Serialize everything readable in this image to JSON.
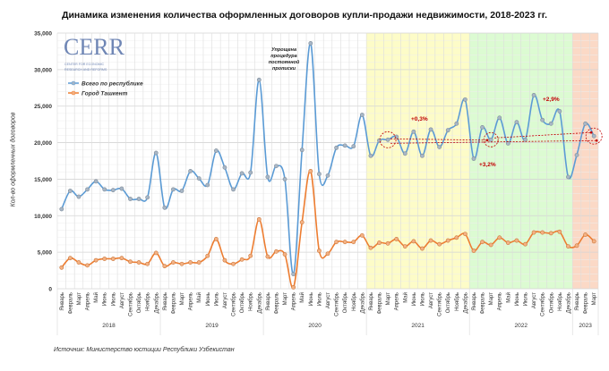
{
  "chart_data": {
    "type": "line",
    "title": "Динамика изменения количества оформленных договоров купли-продажи недвижимости, 2018-2023 гг.",
    "ylabel": "Кол-во оформленных договоров",
    "xlabel": "",
    "ylim": [
      0,
      35000
    ],
    "yticks": [
      0,
      5000,
      10000,
      15000,
      20000,
      25000,
      30000,
      35000
    ],
    "ytick_labels": [
      "0",
      "5,000",
      "10,000",
      "15,000",
      "20,000",
      "25,000",
      "30,000",
      "35,000"
    ],
    "grid": true,
    "legend_position": "top-left",
    "months": [
      "Январь",
      "Февраль",
      "Март",
      "Апрель",
      "Май",
      "Июнь",
      "Июль",
      "Август",
      "Сентябрь",
      "Октябрь",
      "Ноябрь",
      "Декабрь"
    ],
    "years": [
      {
        "label": "2018",
        "months": 12
      },
      {
        "label": "2019",
        "months": 12
      },
      {
        "label": "2020",
        "months": 12
      },
      {
        "label": "2021",
        "months": 12,
        "shade": "#fdfcc8"
      },
      {
        "label": "2022",
        "months": 12,
        "shade": "#dcfbd2"
      },
      {
        "label": "2023",
        "months": 3,
        "shade": "#fbd9c6"
      }
    ],
    "series": [
      {
        "name": "Всего по республике",
        "color": "#5b9bd5",
        "marker": "#a7b6c6",
        "values": [
          10900,
          13400,
          12600,
          13600,
          14700,
          13600,
          13500,
          13700,
          12300,
          12300,
          12500,
          18600,
          11100,
          13600,
          13400,
          16100,
          15100,
          14200,
          18900,
          16600,
          13600,
          15800,
          15900,
          28600,
          15300,
          16800,
          15000,
          2000,
          19000,
          33600,
          15700,
          15500,
          19300,
          19600,
          19500,
          23800,
          18200,
          20300,
          20400,
          20800,
          18500,
          21500,
          18200,
          21800,
          19400,
          21700,
          22600,
          25900,
          17800,
          22100,
          20400,
          23400,
          19900,
          22800,
          20400,
          26500,
          23100,
          22600,
          24300,
          15300,
          18300,
          22600,
          20900
        ]
      },
      {
        "name": "Город Ташкент",
        "color": "#ed7d31",
        "marker": "#f4b183",
        "values": [
          2900,
          4200,
          3600,
          3200,
          3900,
          4100,
          4100,
          4200,
          3700,
          3600,
          3400,
          4900,
          3100,
          3600,
          3400,
          3600,
          3600,
          4500,
          6800,
          3900,
          3400,
          4000,
          4500,
          9500,
          4400,
          5100,
          4700,
          200,
          9100,
          16100,
          5200,
          4800,
          6400,
          6400,
          6400,
          7300,
          5600,
          6300,
          6200,
          6800,
          5800,
          6500,
          5500,
          6600,
          6100,
          6600,
          7000,
          7500,
          5200,
          6400,
          6000,
          7000,
          6300,
          6600,
          6100,
          7700,
          7700,
          7600,
          7800,
          5800,
          5900,
          7400,
          6500
        ]
      }
    ],
    "annotations": [
      {
        "text": "Упрощена процедура постоянной прописки",
        "at": "2020-Июнь"
      },
      {
        "text": "+0,3%",
        "from": "2021-Март",
        "to": "2022-Март"
      },
      {
        "text": "+2,9%",
        "from": "2022-Март",
        "to": "2023-Март"
      },
      {
        "text": "+3,2%",
        "from": "2021-Март",
        "to": "2023-Март"
      }
    ],
    "annotation_color": "#c00000"
  },
  "logo": {
    "text": "CERR",
    "subtitle": "CENTER FOR ECONOMIC RESEARCH AND REFORMS"
  },
  "source": "Источник: Министерство юстиции Республики Узбекистан"
}
